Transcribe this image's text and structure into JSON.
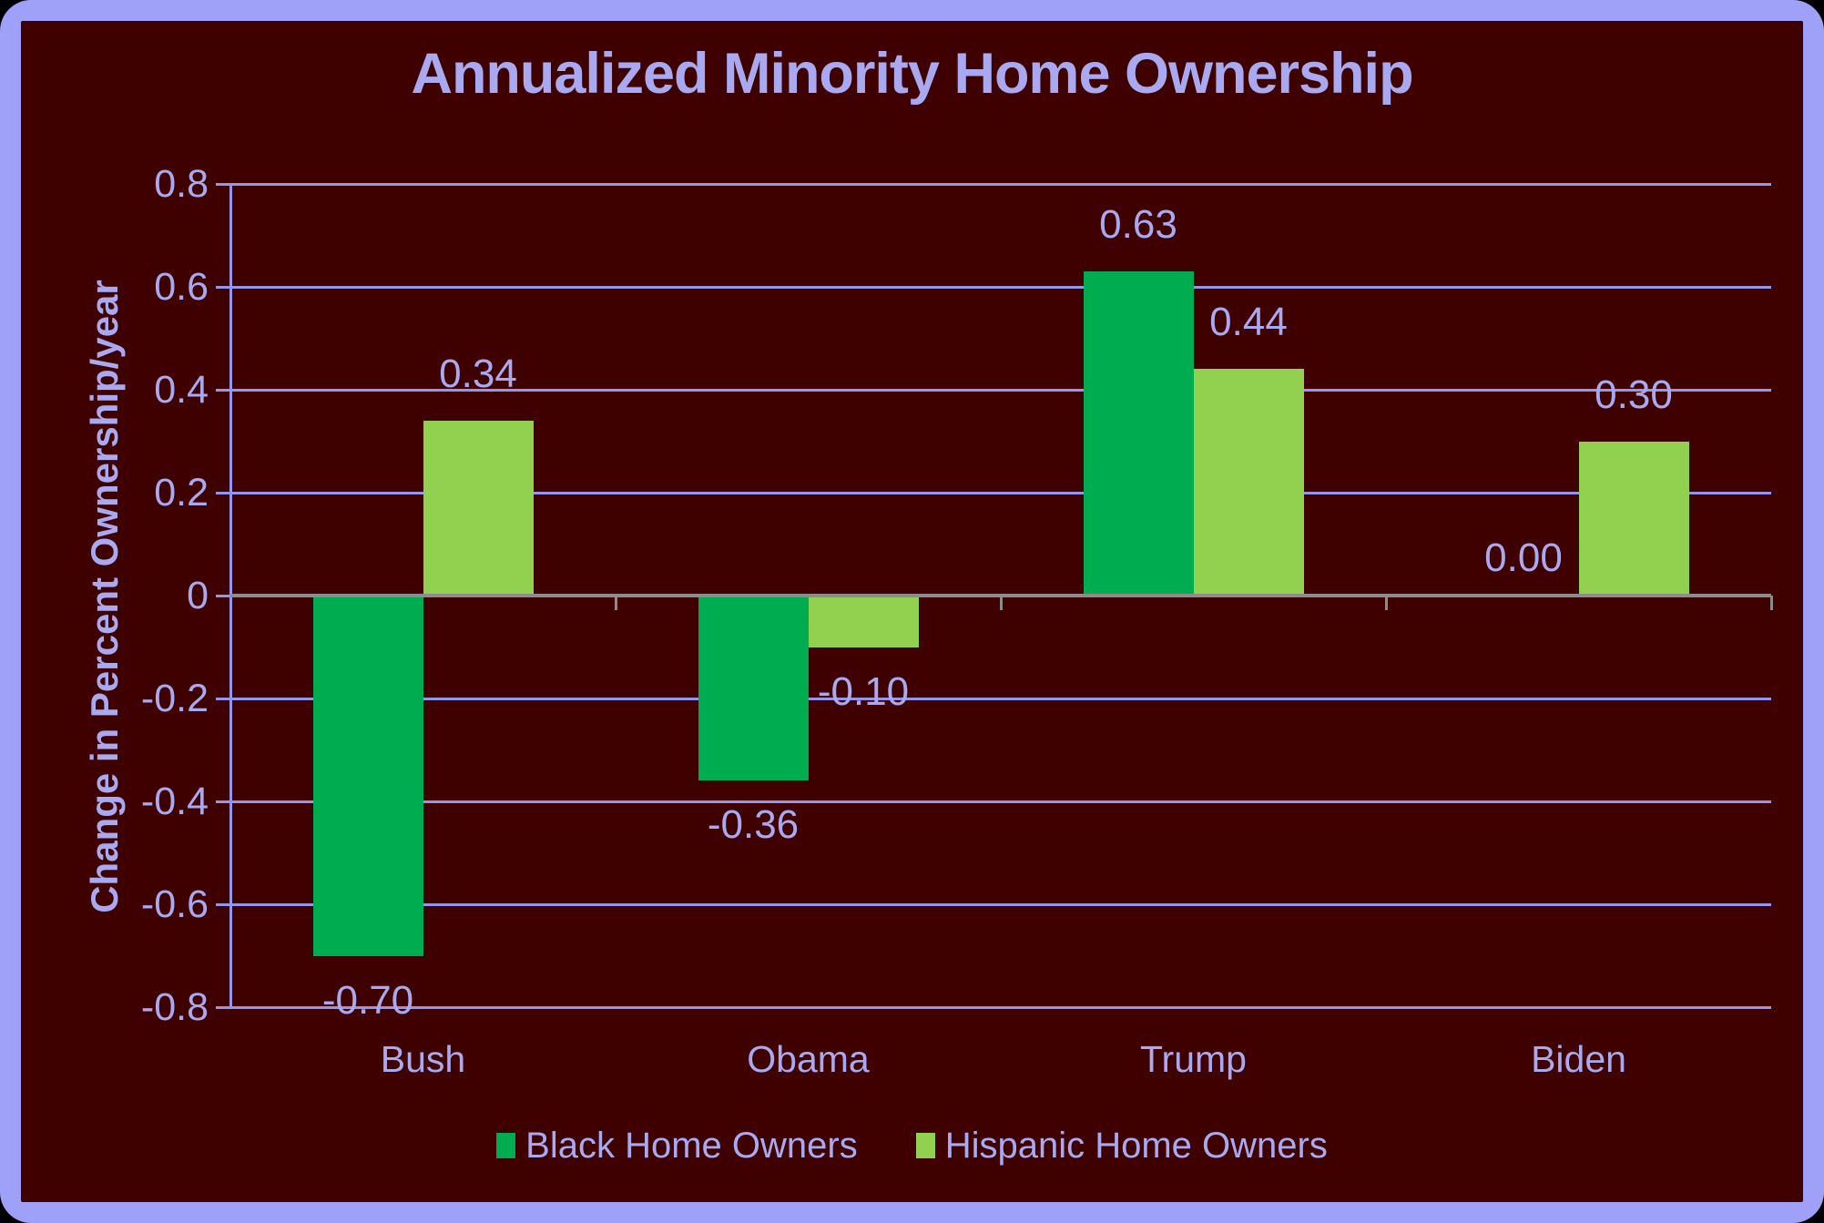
{
  "title": "Annualized Minority Home Ownership",
  "chart_data": {
    "type": "bar",
    "title": "Annualized Minority Home Ownership",
    "ylabel": "Change in Percent Ownership/year",
    "xlabel": "",
    "categories": [
      "Bush",
      "Obama",
      "Trump",
      "Biden"
    ],
    "series": [
      {
        "name": "Black Home Owners",
        "color": "#00AC50",
        "values": [
          -0.7,
          -0.36,
          0.63,
          0.0
        ],
        "value_labels": [
          "-0.70",
          "-0.36",
          "0.63",
          "0.00"
        ]
      },
      {
        "name": "Hispanic Home Owners",
        "color": "#92D050",
        "values": [
          0.34,
          -0.1,
          0.44,
          0.3
        ],
        "value_labels": [
          "0.34",
          "-0.10",
          "0.44",
          "0.30"
        ]
      }
    ],
    "ylim": [
      -0.8,
      0.8
    ],
    "yticks": [
      0.8,
      0.6,
      0.4,
      0.2,
      0,
      -0.2,
      -0.4,
      -0.6,
      -0.8
    ],
    "ytick_labels": [
      "0.8",
      "0.6",
      "0.4",
      "0.2",
      "0",
      "-0.2",
      "-0.4",
      "-0.6",
      "-0.8"
    ],
    "grid": true,
    "data_labels": true,
    "legend_position": "bottom"
  },
  "colors": {
    "background": "#3F0100",
    "frame_border": "#9FA0F8",
    "text": "#A9A9F2",
    "gridline": "#9595EE",
    "zero_axis": "#8C8C8C",
    "series_black": "#00AC50",
    "series_hispanic": "#92D050"
  }
}
